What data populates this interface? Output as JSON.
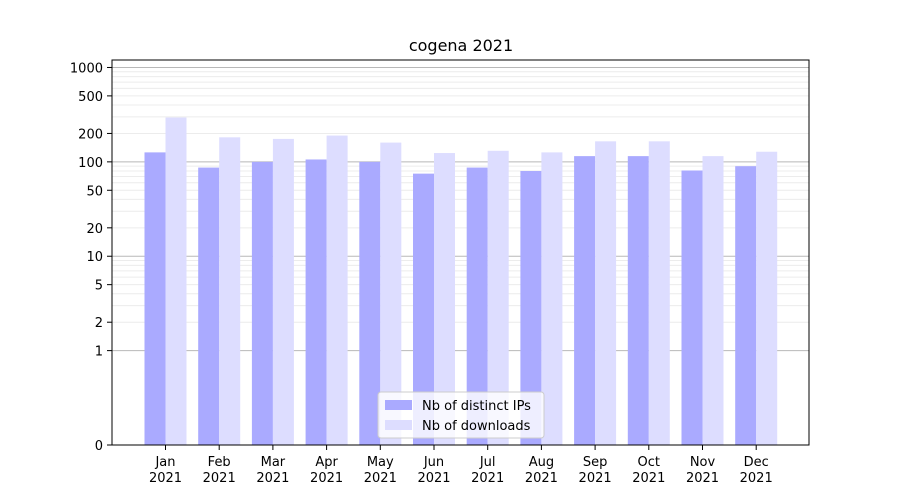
{
  "chart_data": {
    "type": "bar",
    "title": "cogena 2021",
    "xlabel": "",
    "ylabel": "",
    "yscale": "symlog",
    "ylim": [
      0,
      1200
    ],
    "yticks": [
      0,
      1,
      2,
      5,
      10,
      20,
      50,
      100,
      200,
      500,
      1000
    ],
    "categories": [
      "Jan\n2021",
      "Feb\n2021",
      "Mar\n2021",
      "Apr\n2021",
      "May\n2021",
      "Jun\n2021",
      "Jul\n2021",
      "Aug\n2021",
      "Sep\n2021",
      "Oct\n2021",
      "Nov\n2021",
      "Dec\n2021"
    ],
    "series": [
      {
        "name": "Nb of distinct IPs",
        "color": "#aaaaff",
        "values": [
          126,
          87,
          100,
          106,
          100,
          75,
          87,
          80,
          115,
          115,
          81,
          90
        ]
      },
      {
        "name": "Nb of downloads",
        "color": "#ddddff",
        "values": [
          295,
          182,
          175,
          190,
          160,
          124,
          131,
          126,
          165,
          165,
          115,
          128
        ]
      }
    ],
    "grid": true,
    "legend_position": "bottom-center"
  }
}
